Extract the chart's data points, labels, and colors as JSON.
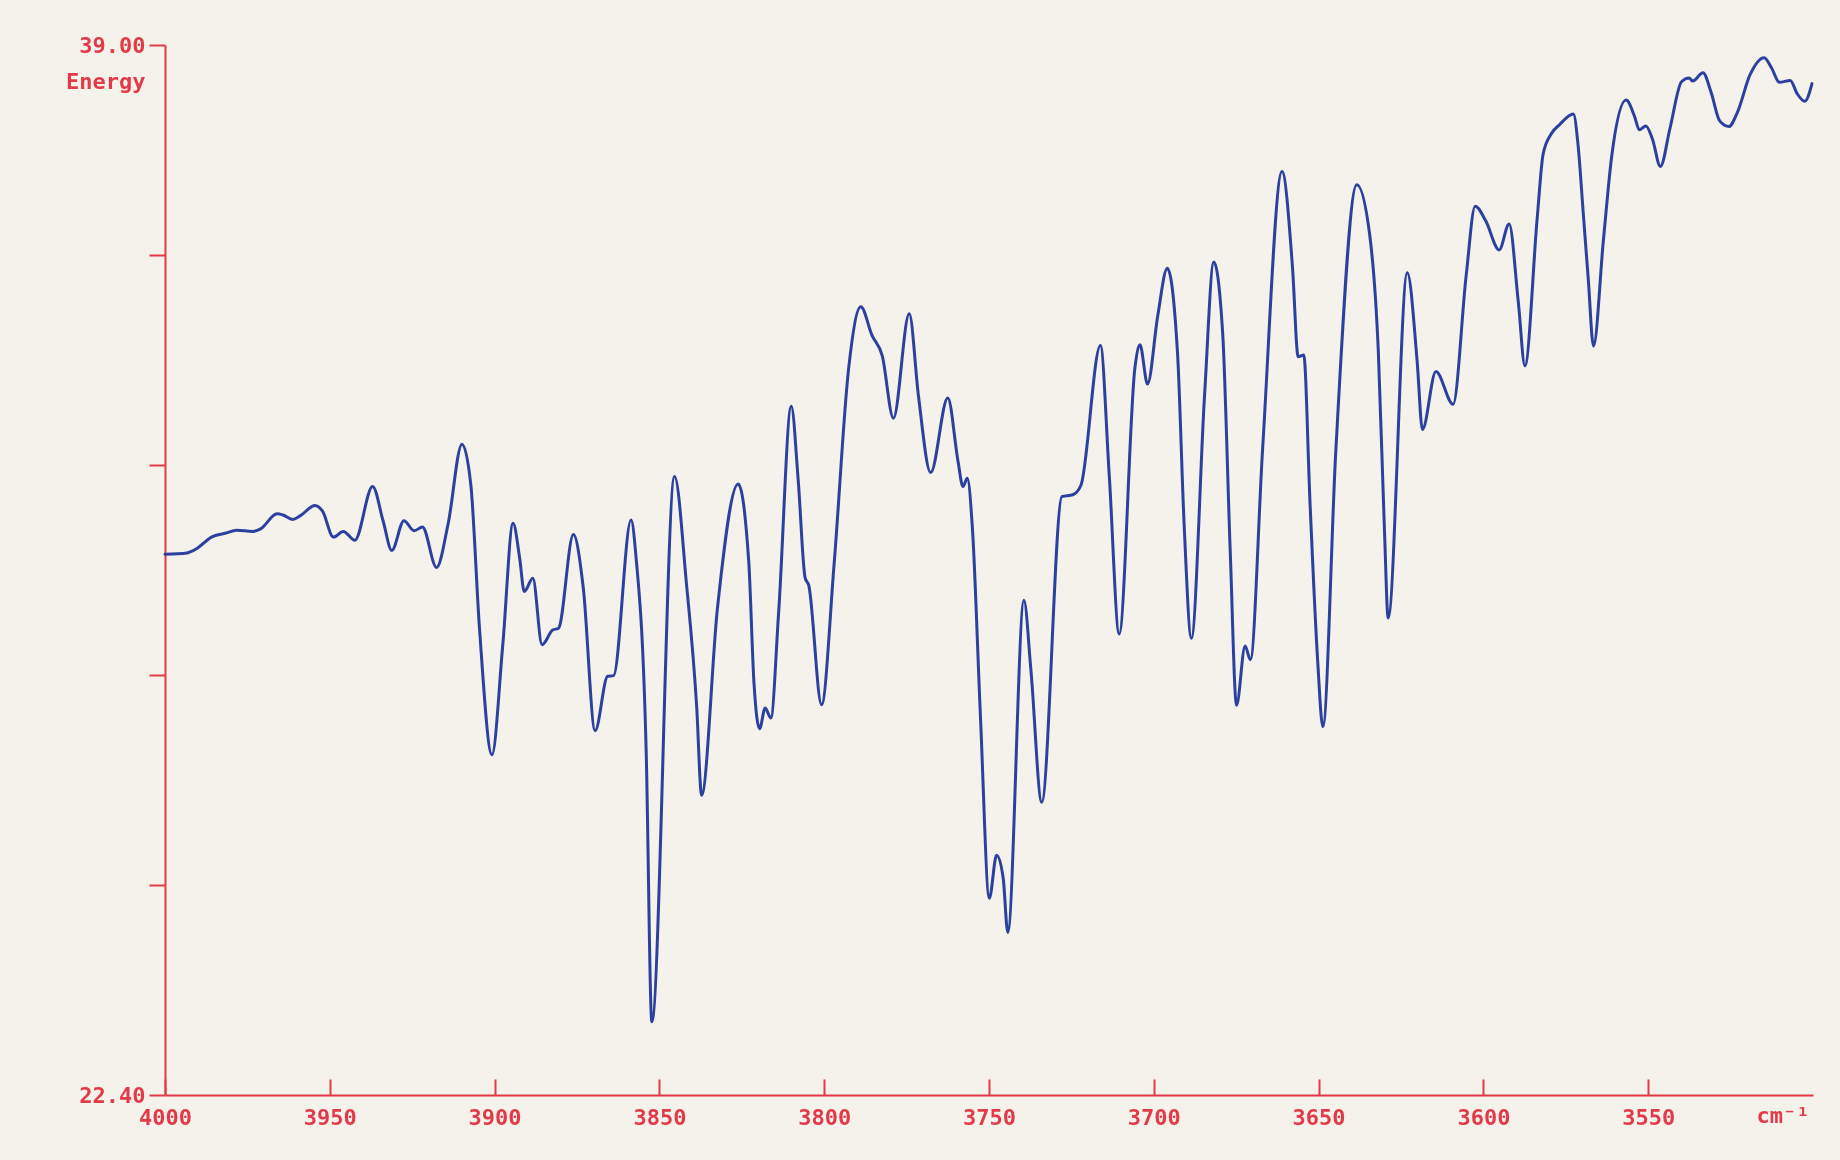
{
  "chart_data": {
    "type": "line",
    "xlabel": "cm⁻¹",
    "ylabel": "Energy",
    "color": "#2c40a0",
    "line_style": "solid",
    "grid": false,
    "xlim": [
      4000,
      3500
    ],
    "xticks": [
      4000,
      3950,
      3900,
      3850,
      3800,
      3750,
      3700,
      3650,
      3600,
      3550
    ],
    "ylim": [
      22.4,
      39
    ],
    "yticks": [
      {
        "value": 22.4,
        "label": "22.40"
      },
      {
        "value": 25.72,
        "label": null
      },
      {
        "value": 29.04,
        "label": null
      },
      {
        "value": 32.36,
        "label": null
      },
      {
        "value": 35.68,
        "label": null
      },
      {
        "value": 39,
        "label": "39.00"
      }
    ],
    "x": [
      4000,
      3993.3,
      3990.3,
      3985.9,
      3981.8,
      3978.2,
      3973.4,
      3971.0,
      3966.0,
      3964.2,
      3961.3,
      3958.9,
      3954.5,
      3952.2,
      3948.9,
      3945.9,
      3942.4,
      3937.0,
      3933.8,
      3931.2,
      3927.5,
      3924.4,
      3921.9,
      3917.6,
      3914.1,
      3909.9,
      3907.2,
      3904.6,
      3900.8,
      3897.5,
      3894.4,
      3892.4,
      3891.0,
      3888.4,
      3885.6,
      3882.4,
      3880.6,
      3876.1,
      3873.1,
      3869.5,
      3865.7,
      3863.9,
      3858.6,
      3857.1,
      3854.0,
      3852.3,
      3845.4,
      3841.8,
      3838.7,
      3837.2,
      3832.4,
      3826.1,
      3822.9,
      3821.3,
      3819.6,
      3817.9,
      3816.2,
      3813.8,
      3810.0,
      3807.9,
      3805.8,
      3804.7,
      3800.8,
      3797.0,
      3792.6,
      3788.9,
      3785.5,
      3782.4,
      3779.0,
      3774.2,
      3771.4,
      3767.7,
      3762.5,
      3759.4,
      3757.9,
      3756.6,
      3755.0,
      3752.6,
      3749.9,
      3747.7,
      3745.7,
      3744.3,
      3739.4,
      3737.3,
      3734.0,
      3727.9,
      3724.6,
      3722.1,
      3716.2,
      3713.5,
      3710.5,
      3705.7,
      3704.2,
      3701.9,
      3698.8,
      3695.9,
      3692.8,
      3690.8,
      3688.6,
      3684.6,
      3681.8,
      3679.1,
      3676.8,
      3674.9,
      3672.3,
      3670.7,
      3667.0,
      3661.1,
      3657.9,
      3656.2,
      3654.5,
      3652.6,
      3650.3,
      3648.7,
      3644.8,
      3638.4,
      3634.5,
      3631.9,
      3630.0,
      3628.9,
      3623.1,
      3620.1,
      3618.5,
      3614.4,
      3609.2,
      3605.2,
      3602.5,
      3599.3,
      3595.2,
      3592.2,
      3589.4,
      3587.4,
      3583.7,
      3581.9,
      3579.5,
      3576.9,
      3572.7,
      3571.3,
      3569.7,
      3568.2,
      3566.6,
      3563.6,
      3561.1,
      3556.7,
      3554.2,
      3552.7,
      3550.7,
      3548.7,
      3546.3,
      3543.4,
      3539.9,
      3537.6,
      3536.5,
      3533.4,
      3530.9,
      3528.3,
      3525.5,
      3522.9,
      3519.1,
      3514.8,
      3512.6,
      3510.2,
      3506.9,
      3504.8,
      3502.5,
      3500.3
    ],
    "values": [
      30.95,
      30.97,
      31.04,
      31.22,
      31.28,
      31.33,
      31.31,
      31.35,
      31.59,
      31.57,
      31.5,
      31.56,
      31.72,
      31.63,
      31.22,
      31.31,
      31.17,
      32.02,
      31.47,
      31.01,
      31.48,
      31.32,
      31.38,
      30.74,
      31.43,
      32.69,
      32.04,
      29.79,
      27.78,
      29.53,
      31.44,
      30.89,
      30.36,
      30.57,
      29.52,
      29.75,
      29.78,
      31.26,
      30.42,
      28.16,
      29.02,
      29.03,
      31.49,
      30.91,
      27.81,
      23.56,
      32.18,
      30.49,
      28.55,
      27.14,
      30.09,
      32.06,
      30.84,
      28.91,
      28.19,
      28.52,
      28.36,
      30.05,
      33.29,
      32.13,
      30.58,
      30.46,
      28.57,
      30.79,
      33.88,
      34.86,
      34.41,
      34.09,
      33.1,
      34.75,
      33.45,
      32.24,
      33.42,
      32.42,
      32.02,
      32.15,
      31.33,
      28.39,
      25.51,
      26.19,
      25.83,
      24.97,
      30.22,
      29.13,
      27.03,
      31.86,
      31.89,
      32.04,
      34.25,
      32.18,
      29.69,
      33.91,
      34.26,
      33.64,
      34.72,
      35.47,
      34.13,
      31.42,
      29.62,
      33.46,
      35.57,
      34.44,
      30.98,
      28.56,
      29.5,
      29.28,
      32.6,
      37.0,
      35.47,
      34.07,
      34.1,
      31.76,
      29.28,
      28.22,
      32.56,
      36.79,
      36.0,
      34.18,
      31.3,
      29.94,
      35.4,
      34.0,
      32.92,
      33.84,
      33.32,
      35.37,
      36.45,
      36.22,
      35.76,
      36.17,
      34.93,
      33.93,
      36.25,
      37.27,
      37.59,
      37.74,
      37.91,
      37.43,
      36.34,
      35.31,
      34.24,
      35.91,
      37.23,
      38.13,
      37.88,
      37.66,
      37.72,
      37.51,
      37.08,
      37.68,
      38.42,
      38.48,
      38.43,
      38.56,
      38.25,
      37.8,
      37.71,
      37.94,
      38.53,
      38.8,
      38.64,
      38.41,
      38.44,
      38.23,
      38.11,
      38.39
    ]
  }
}
